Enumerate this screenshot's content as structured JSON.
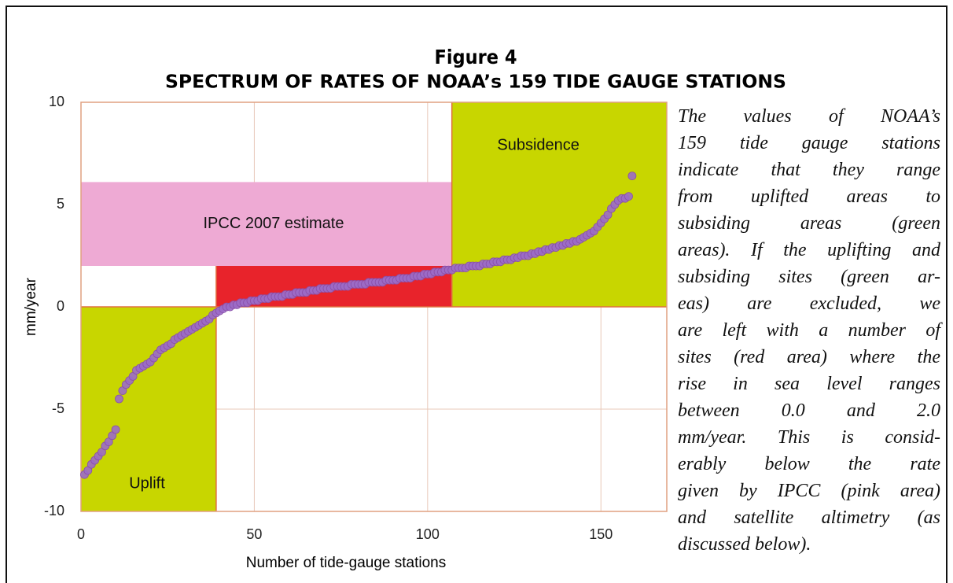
{
  "chart_data": {
    "type": "scatter",
    "title": "Figure 4",
    "subtitle": "SPECTRUM OF RATES OF NOAA’s 159 TIDE GAUGE STATIONS",
    "xlabel": "Number of tide-gauge stations",
    "ylabel": "mm/year",
    "xlim": [
      0,
      169
    ],
    "ylim": [
      -10,
      10
    ],
    "xticks": [
      0,
      50,
      100,
      150
    ],
    "yticks": [
      -10,
      -5,
      0,
      5,
      10
    ],
    "grid": true,
    "color": "#9b6cc8",
    "regions": [
      {
        "x": [
          0,
          169
        ],
        "y": [
          2,
          6.1
        ],
        "color": "#eeaad4",
        "label": "IPCC 2007 estimate"
      },
      {
        "x": [
          0,
          39
        ],
        "y": [
          -10,
          0
        ],
        "color": "#c8d600",
        "label": "Uplift"
      },
      {
        "x": [
          107,
          169
        ],
        "y": [
          0,
          10
        ],
        "color": "#c8d600",
        "label": "Subsidence"
      },
      {
        "x": [
          39,
          107
        ],
        "y": [
          0,
          2
        ],
        "color": "#e8232b"
      }
    ],
    "x": [
      1,
      2,
      3,
      4,
      5,
      6,
      7,
      8,
      9,
      10,
      11,
      12,
      13,
      14,
      15,
      16,
      17,
      18,
      19,
      20,
      21,
      22,
      23,
      24,
      25,
      26,
      27,
      28,
      29,
      30,
      31,
      32,
      33,
      34,
      35,
      36,
      37,
      38,
      39,
      40,
      41,
      42,
      43,
      44,
      45,
      46,
      47,
      48,
      49,
      50,
      51,
      52,
      53,
      54,
      55,
      56,
      57,
      58,
      59,
      60,
      61,
      62,
      63,
      64,
      65,
      66,
      67,
      68,
      69,
      70,
      71,
      72,
      73,
      74,
      75,
      76,
      77,
      78,
      79,
      80,
      81,
      82,
      83,
      84,
      85,
      86,
      87,
      88,
      89,
      90,
      91,
      92,
      93,
      94,
      95,
      96,
      97,
      98,
      99,
      100,
      101,
      102,
      103,
      104,
      105,
      106,
      107,
      108,
      109,
      110,
      111,
      112,
      113,
      114,
      115,
      116,
      117,
      118,
      119,
      120,
      121,
      122,
      123,
      124,
      125,
      126,
      127,
      128,
      129,
      130,
      131,
      132,
      133,
      134,
      135,
      136,
      137,
      138,
      139,
      140,
      141,
      142,
      143,
      144,
      145,
      146,
      147,
      148,
      149,
      150,
      151,
      152,
      153,
      154,
      155,
      156,
      157,
      158,
      159
    ],
    "values": [
      -8.2,
      -8.0,
      -7.7,
      -7.5,
      -7.3,
      -7.1,
      -6.8,
      -6.6,
      -6.3,
      -6.0,
      -4.5,
      -4.1,
      -3.8,
      -3.6,
      -3.4,
      -3.1,
      -3.0,
      -2.9,
      -2.8,
      -2.7,
      -2.5,
      -2.3,
      -2.1,
      -2.0,
      -1.9,
      -1.8,
      -1.6,
      -1.5,
      -1.4,
      -1.3,
      -1.2,
      -1.1,
      -1.0,
      -0.9,
      -0.8,
      -0.7,
      -0.6,
      -0.4,
      -0.3,
      -0.2,
      -0.1,
      0.0,
      0.0,
      0.1,
      0.1,
      0.2,
      0.2,
      0.2,
      0.3,
      0.3,
      0.3,
      0.4,
      0.4,
      0.4,
      0.5,
      0.5,
      0.5,
      0.5,
      0.6,
      0.6,
      0.6,
      0.7,
      0.7,
      0.7,
      0.7,
      0.8,
      0.8,
      0.8,
      0.9,
      0.9,
      0.9,
      0.9,
      1.0,
      1.0,
      1.0,
      1.0,
      1.0,
      1.1,
      1.1,
      1.1,
      1.1,
      1.1,
      1.2,
      1.2,
      1.2,
      1.2,
      1.2,
      1.3,
      1.3,
      1.3,
      1.3,
      1.4,
      1.4,
      1.4,
      1.4,
      1.5,
      1.5,
      1.5,
      1.6,
      1.6,
      1.6,
      1.7,
      1.7,
      1.7,
      1.8,
      1.8,
      1.8,
      1.9,
      1.9,
      1.9,
      1.9,
      2.0,
      2.0,
      2.0,
      2.0,
      2.1,
      2.1,
      2.1,
      2.2,
      2.2,
      2.2,
      2.3,
      2.3,
      2.3,
      2.4,
      2.4,
      2.5,
      2.5,
      2.5,
      2.6,
      2.6,
      2.7,
      2.7,
      2.8,
      2.8,
      2.9,
      2.9,
      3.0,
      3.0,
      3.1,
      3.1,
      3.2,
      3.2,
      3.3,
      3.4,
      3.5,
      3.6,
      3.7,
      3.9,
      4.1,
      4.3,
      4.5,
      4.8,
      5.0,
      5.2,
      5.3,
      5.3,
      5.4,
      6.4
    ]
  },
  "caption": {
    "lines": [
      "The values of NOAA’s",
      "159 tide gauge stations",
      "indicate that they range",
      "from uplifted areas to",
      "subsiding areas (green",
      "areas). If the uplifting and",
      "subsiding sites (green ar-",
      "eas) are excluded, we",
      "are left with a number of",
      "sites (red area) where the",
      "rise in sea level ranges",
      "between 0.0 and 2.0",
      "mm/year. This is consid-",
      "erably below the rate",
      "given by IPCC (pink area)",
      "and satellite altimetry (as",
      "discussed below)."
    ]
  }
}
